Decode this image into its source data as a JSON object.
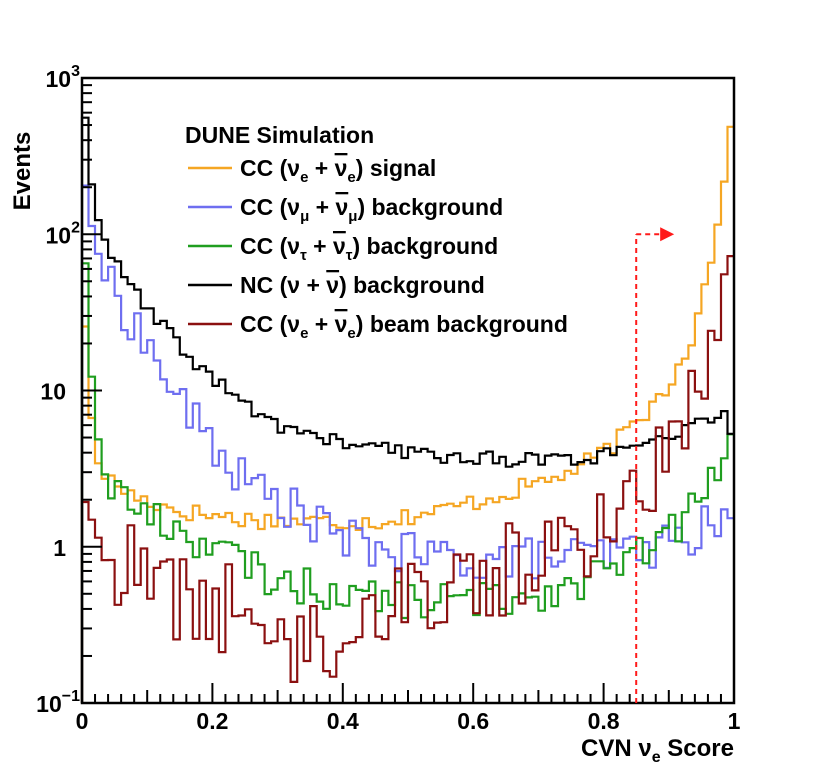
{
  "chart_data": {
    "type": "histogram",
    "xlabel": "CVN νe Score",
    "xlabel_parts": {
      "main": "CVN ν",
      "sub": "e",
      "tail": " Score"
    },
    "ylabel": "Events",
    "yscale": "log",
    "xlim": [
      0,
      1
    ],
    "ylim": [
      0.1,
      1000
    ],
    "xticks": [
      {
        "value": 0,
        "label": "0"
      },
      {
        "value": 0.2,
        "label": "0.2"
      },
      {
        "value": 0.4,
        "label": "0.4"
      },
      {
        "value": 0.6,
        "label": "0.6"
      },
      {
        "value": 0.8,
        "label": "0.8"
      },
      {
        "value": 1,
        "label": "1"
      }
    ],
    "yticks": [
      {
        "value": 0.1,
        "base": "10",
        "exp": "−1"
      },
      {
        "value": 1,
        "base": "1",
        "exp": ""
      },
      {
        "value": 10,
        "base": "10",
        "exp": ""
      },
      {
        "value": 100,
        "base": "10",
        "exp": "2"
      },
      {
        "value": 1000,
        "base": "10",
        "exp": "3"
      }
    ],
    "legend_title": "DUNE Simulation",
    "cut_value": 0.85,
    "cut_arrow_y": 100,
    "series": [
      {
        "name": "CC (νe + ν̄e) signal",
        "legend": {
          "pre": "CC (ν",
          "sub": "e",
          "mid": " + ",
          "bar": "ν",
          "sub2": "e",
          "post": ") signal"
        },
        "color": "#f5a623",
        "knots": [
          [
            0,
            55
          ],
          [
            0.01,
            12
          ],
          [
            0.02,
            3.7
          ],
          [
            0.04,
            2.7
          ],
          [
            0.08,
            2.1
          ],
          [
            0.15,
            1.7
          ],
          [
            0.25,
            1.5
          ],
          [
            0.35,
            1.45
          ],
          [
            0.45,
            1.45
          ],
          [
            0.55,
            1.7
          ],
          [
            0.65,
            2.2
          ],
          [
            0.75,
            3.0
          ],
          [
            0.8,
            4.0
          ],
          [
            0.85,
            6.0
          ],
          [
            0.9,
            11
          ],
          [
            0.94,
            24
          ],
          [
            0.97,
            90
          ],
          [
            0.99,
            330
          ],
          [
            1.0,
            720
          ]
        ]
      },
      {
        "name": "CC (νμ + ν̄μ) background",
        "legend": {
          "pre": "CC (ν",
          "sub": "μ",
          "mid": " + ",
          "bar": "ν",
          "sub2": "μ",
          "post": ") background"
        },
        "color": "#6e6ef0",
        "knots": [
          [
            0,
            280
          ],
          [
            0.01,
            150
          ],
          [
            0.02,
            85
          ],
          [
            0.05,
            40
          ],
          [
            0.08,
            27
          ],
          [
            0.12,
            14
          ],
          [
            0.15,
            8.5
          ],
          [
            0.2,
            4.5
          ],
          [
            0.25,
            2.6
          ],
          [
            0.3,
            2.0
          ],
          [
            0.35,
            1.5
          ],
          [
            0.4,
            1.1
          ],
          [
            0.5,
            0.9
          ],
          [
            0.6,
            0.82
          ],
          [
            0.7,
            0.85
          ],
          [
            0.8,
            0.88
          ],
          [
            0.85,
            0.95
          ],
          [
            0.9,
            1.05
          ],
          [
            0.95,
            1.3
          ],
          [
            1.0,
            1.55
          ]
        ]
      },
      {
        "name": "CC (ντ + ν̄τ) background",
        "legend": {
          "pre": "CC (ν",
          "sub": "τ",
          "mid": " + ",
          "bar": "ν",
          "sub2": "τ",
          "post": ") background"
        },
        "color": "#1f9e1f",
        "knots": [
          [
            0,
            170
          ],
          [
            0.01,
            25
          ],
          [
            0.02,
            6
          ],
          [
            0.04,
            2.6
          ],
          [
            0.08,
            1.8
          ],
          [
            0.12,
            1.45
          ],
          [
            0.2,
            1.0
          ],
          [
            0.3,
            0.6
          ],
          [
            0.4,
            0.5
          ],
          [
            0.5,
            0.45
          ],
          [
            0.6,
            0.45
          ],
          [
            0.7,
            0.5
          ],
          [
            0.75,
            0.58
          ],
          [
            0.8,
            0.68
          ],
          [
            0.85,
            0.85
          ],
          [
            0.9,
            1.2
          ],
          [
            0.95,
            2.0
          ],
          [
            0.98,
            3.5
          ],
          [
            1.0,
            6.0
          ]
        ]
      },
      {
        "name": "NC (ν + ν̄) background",
        "legend": {
          "pre": "NC (ν",
          "sub": "",
          "mid": " + ",
          "bar": "ν",
          "sub2": "",
          "post": ") background"
        },
        "color": "#000000",
        "knots": [
          [
            0,
            1000
          ],
          [
            0.01,
            310
          ],
          [
            0.02,
            140
          ],
          [
            0.05,
            65
          ],
          [
            0.1,
            33
          ],
          [
            0.15,
            19
          ],
          [
            0.2,
            12
          ],
          [
            0.25,
            8
          ],
          [
            0.3,
            6
          ],
          [
            0.4,
            4.6
          ],
          [
            0.5,
            4.0
          ],
          [
            0.6,
            3.7
          ],
          [
            0.7,
            3.6
          ],
          [
            0.8,
            3.8
          ],
          [
            0.85,
            4.2
          ],
          [
            0.9,
            5.0
          ],
          [
            0.95,
            6.0
          ],
          [
            0.98,
            7.5
          ],
          [
            1.0,
            4.7
          ]
        ]
      },
      {
        "name": "CC (νe + ν̄e) beam background",
        "legend": {
          "pre": "CC (ν",
          "sub": "e",
          "mid": " + ",
          "bar": "ν",
          "sub2": "e",
          "post": ") beam background"
        },
        "color": "#8b1010",
        "knots": [
          [
            0,
            2.2
          ],
          [
            0.01,
            1.7
          ],
          [
            0.03,
            1.0
          ],
          [
            0.06,
            0.75
          ],
          [
            0.1,
            0.6
          ],
          [
            0.2,
            0.4
          ],
          [
            0.3,
            0.33
          ],
          [
            0.37,
            0.2
          ],
          [
            0.4,
            0.35
          ],
          [
            0.5,
            0.5
          ],
          [
            0.6,
            0.62
          ],
          [
            0.7,
            0.8
          ],
          [
            0.75,
            1.0
          ],
          [
            0.8,
            1.4
          ],
          [
            0.85,
            2.2
          ],
          [
            0.9,
            4
          ],
          [
            0.95,
            12
          ],
          [
            0.98,
            45
          ],
          [
            1.0,
            85
          ]
        ]
      }
    ]
  }
}
